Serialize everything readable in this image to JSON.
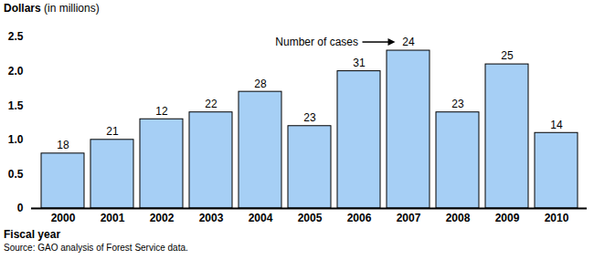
{
  "chart_data": {
    "type": "bar",
    "y_label": "Dollars (in millions)",
    "x_label": "Fiscal year",
    "source": "Source: GAO analysis of Forest Service data.",
    "categories": [
      "2000",
      "2001",
      "2002",
      "2003",
      "2004",
      "2005",
      "2006",
      "2007",
      "2008",
      "2009",
      "2010"
    ],
    "values": [
      0.8,
      1.0,
      1.3,
      1.4,
      1.7,
      1.2,
      2.0,
      2.3,
      1.4,
      2.1,
      1.1
    ],
    "cases": [
      18,
      21,
      12,
      22,
      28,
      23,
      31,
      24,
      23,
      25,
      14
    ],
    "annotations": [
      {
        "text": "Number of cases",
        "category": "2007"
      }
    ],
    "color": "#a6cff5",
    "ylim": [
      0,
      2.5
    ],
    "yticks": [
      0,
      0.5,
      {
        "value": 1,
        "label": "1.0"
      },
      1.5,
      {
        "value": 2,
        "label": "2.0"
      },
      2.5
    ],
    "grid": false
  }
}
